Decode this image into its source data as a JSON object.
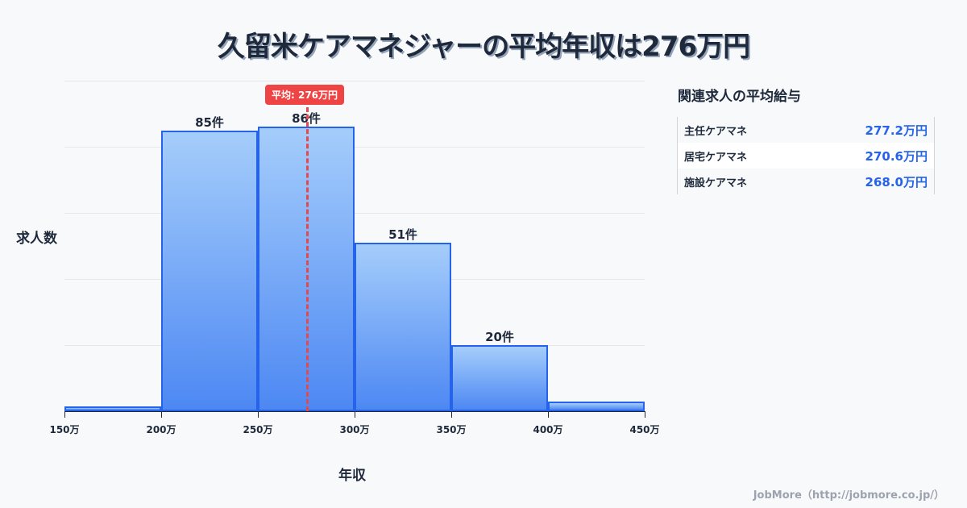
{
  "title": "久留米ケアマネジャーの平均年収は276万円",
  "chart_data": {
    "type": "bar",
    "title": "久留米ケアマネジャーの平均年収は276万円",
    "xlabel": "年収",
    "ylabel": "求人数",
    "categories": [
      "150-200万",
      "200-250万",
      "250-300万",
      "300-350万",
      "350-400万",
      "400-450万"
    ],
    "bin_edges": [
      150,
      200,
      250,
      300,
      350,
      400,
      450
    ],
    "values": [
      1,
      85,
      86,
      51,
      20,
      3
    ],
    "bar_labels": [
      "",
      "85件",
      "86件",
      "51件",
      "20件",
      ""
    ],
    "x_tick_labels": [
      "150万",
      "200万",
      "250万",
      "300万",
      "350万",
      "400万",
      "450万"
    ],
    "ylim": [
      0,
      100
    ],
    "grid": true,
    "mean": {
      "value": 276,
      "label": "平均: 276万円",
      "color": "#ef4444"
    },
    "bar_color": "#4d88f3",
    "bar_border_color": "#2563eb"
  },
  "side_panel": {
    "title": "関連求人の平均給与",
    "rows": [
      {
        "name": "主任ケアマネ",
        "value": "277.2万円"
      },
      {
        "name": "居宅ケアマネ",
        "value": "270.6万円"
      },
      {
        "name": "施設ケアマネ",
        "value": "268.0万円"
      }
    ]
  },
  "footer": "JobMore（http://jobmore.co.jp/）"
}
